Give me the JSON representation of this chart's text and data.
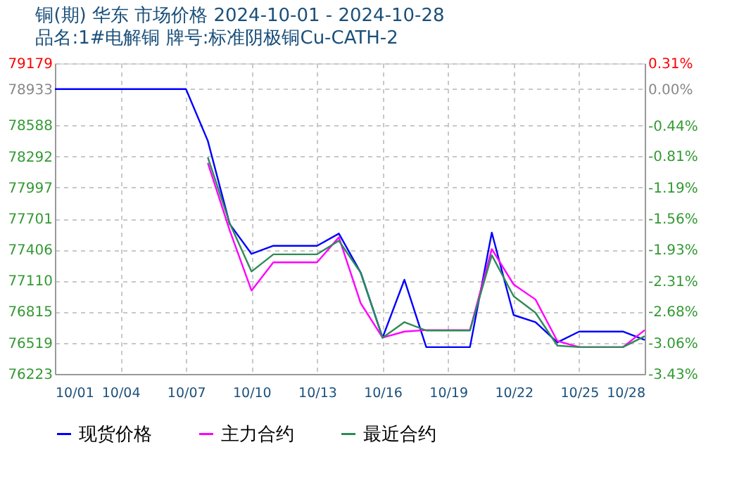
{
  "chart_data": {
    "type": "line",
    "title": "铜(期) 华东 市场价格 2024-10-01 - 2024-10-28",
    "subtitle": "品名:1#电解铜 牌号:标准阴极铜Cu-CATH-2",
    "x": [
      "2024-10-01",
      "2024-10-02",
      "2024-10-03",
      "2024-10-04",
      "2024-10-05",
      "2024-10-06",
      "2024-10-07",
      "2024-10-08",
      "2024-10-09",
      "2024-10-10",
      "2024-10-11",
      "2024-10-12",
      "2024-10-13",
      "2024-10-14",
      "2024-10-15",
      "2024-10-16",
      "2024-10-17",
      "2024-10-18",
      "2024-10-19",
      "2024-10-20",
      "2024-10-21",
      "2024-10-22",
      "2024-10-23",
      "2024-10-24",
      "2024-10-25",
      "2024-10-26",
      "2024-10-27",
      "2024-10-28"
    ],
    "series": [
      {
        "name": "现货价格",
        "color": "#0000ff",
        "values": [
          78933,
          78933,
          78933,
          78933,
          78933,
          78933,
          78933,
          78441,
          77650,
          77365,
          77442,
          77442,
          77442,
          77558,
          77186,
          76568,
          77119,
          76478,
          76478,
          76478,
          77567,
          76783,
          76716,
          76523,
          76626,
          76626,
          76626,
          76546
        ]
      },
      {
        "name": "主力合约",
        "color": "#ff00ff",
        "values": [
          null,
          null,
          null,
          null,
          null,
          null,
          null,
          78230,
          77590,
          77016,
          77285,
          77285,
          77285,
          77523,
          76895,
          76568,
          76626,
          76640,
          76640,
          76640,
          77411,
          77074,
          76931,
          76536,
          76478,
          76478,
          76478,
          76640
        ]
      },
      {
        "name": "最近合约",
        "color": "#2e8b57",
        "values": [
          null,
          null,
          null,
          null,
          null,
          null,
          null,
          78283,
          77658,
          77197,
          77361,
          77361,
          77361,
          77490,
          77186,
          76568,
          76716,
          76636,
          76636,
          76636,
          77352,
          76962,
          76805,
          76492,
          76478,
          76478,
          76478,
          76582
        ]
      }
    ],
    "xlim": [
      "2024-10-01",
      "2024-10-28"
    ],
    "xticks": [
      {
        "value": "2024-10-01",
        "label": "10/01"
      },
      {
        "value": "2024-10-04",
        "label": "10/04"
      },
      {
        "value": "2024-10-07",
        "label": "10/07"
      },
      {
        "value": "2024-10-10",
        "label": "10/10"
      },
      {
        "value": "2024-10-13",
        "label": "10/13"
      },
      {
        "value": "2024-10-16",
        "label": "10/16"
      },
      {
        "value": "2024-10-19",
        "label": "10/19"
      },
      {
        "value": "2024-10-22",
        "label": "10/22"
      },
      {
        "value": "2024-10-25",
        "label": "10/25"
      },
      {
        "value": "2024-10-28",
        "label": "10/28"
      }
    ],
    "ylim": [
      76223,
      79179
    ],
    "yticks": [
      79179,
      78933,
      78588,
      78292,
      77997,
      77701,
      77406,
      77110,
      76815,
      76519,
      76223
    ],
    "y2lim": [
      -3.43,
      0.31
    ],
    "y2ticks": [
      {
        "value": 0.31,
        "label": "0.31%"
      },
      {
        "value": 0,
        "label": "0.00%"
      },
      {
        "value": -0.44,
        "label": "-0.44%"
      },
      {
        "value": -0.81,
        "label": "-0.81%"
      },
      {
        "value": -1.19,
        "label": "-1.19%"
      },
      {
        "value": -1.56,
        "label": "-1.56%"
      },
      {
        "value": -1.93,
        "label": "-1.93%"
      },
      {
        "value": -2.31,
        "label": "-2.31%"
      },
      {
        "value": -2.68,
        "label": "-2.68%"
      },
      {
        "value": -3.06,
        "label": "-3.06%"
      },
      {
        "value": -3.43,
        "label": "-3.43%"
      }
    ],
    "grid": true,
    "legend": "bottom",
    "marker": "none",
    "line_style": "solid"
  }
}
